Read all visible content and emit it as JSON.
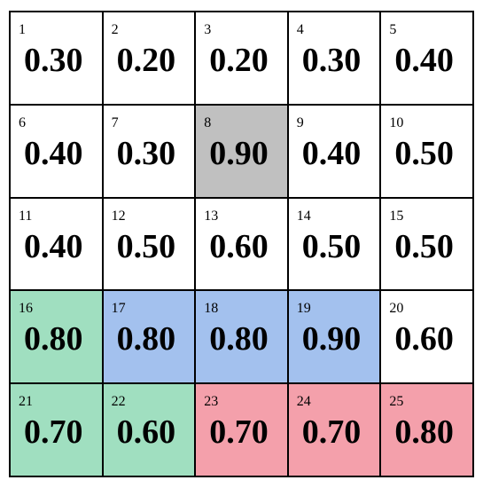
{
  "cells": [
    {
      "index": 1,
      "value": "0.30"
    },
    {
      "index": 2,
      "value": "0.20"
    },
    {
      "index": 3,
      "value": "0.20"
    },
    {
      "index": 4,
      "value": "0.30"
    },
    {
      "index": 5,
      "value": "0.40"
    },
    {
      "index": 6,
      "value": "0.40"
    },
    {
      "index": 7,
      "value": "0.30"
    },
    {
      "index": 8,
      "value": "0.90",
      "color": "#c0c0c0"
    },
    {
      "index": 9,
      "value": "0.40"
    },
    {
      "index": 10,
      "value": "0.50"
    },
    {
      "index": 11,
      "value": "0.40"
    },
    {
      "index": 12,
      "value": "0.50"
    },
    {
      "index": 13,
      "value": "0.60"
    },
    {
      "index": 14,
      "value": "0.50"
    },
    {
      "index": 15,
      "value": "0.50"
    },
    {
      "index": 16,
      "value": "0.80",
      "color": "#a0dfc0"
    },
    {
      "index": 17,
      "value": "0.80",
      "color": "#a3c1ee"
    },
    {
      "index": 18,
      "value": "0.80",
      "color": "#a3c1ee"
    },
    {
      "index": 19,
      "value": "0.90",
      "color": "#a3c1ee"
    },
    {
      "index": 20,
      "value": "0.60"
    },
    {
      "index": 21,
      "value": "0.70",
      "color": "#a0dfc0"
    },
    {
      "index": 22,
      "value": "0.60",
      "color": "#a0dfc0"
    },
    {
      "index": 23,
      "value": "0.70",
      "color": "#f4a0ab"
    },
    {
      "index": 24,
      "value": "0.70",
      "color": "#f4a0ab"
    },
    {
      "index": 25,
      "value": "0.80",
      "color": "#f4a0ab"
    }
  ]
}
